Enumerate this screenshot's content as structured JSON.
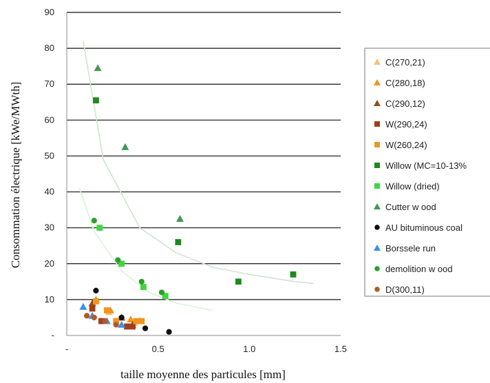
{
  "chart_data": {
    "type": "scatter",
    "xlabel": "taille moyenne des particules [mm]",
    "ylabel": "Consommation électrique [kWe/MWth]",
    "xlim": [
      0,
      1.5
    ],
    "ylim": [
      0,
      90
    ],
    "x_ticks": [
      "-",
      "0.5",
      "1.0",
      "1.5"
    ],
    "y_ticks": [
      "-",
      "10",
      "20",
      "30",
      "40",
      "50",
      "60",
      "70",
      "80",
      "90"
    ],
    "grid": "horizontal",
    "legend_position": "right",
    "series": [
      {
        "name": "C(270,21)",
        "marker": "triangle",
        "color": "#f5c27a",
        "points": [
          [
            0.23,
            6.5
          ],
          [
            0.37,
            3.5
          ]
        ]
      },
      {
        "name": "C(280,18)",
        "marker": "triangle",
        "color": "#f0951e",
        "points": [
          [
            0.16,
            10
          ],
          [
            0.24,
            7
          ],
          [
            0.35,
            4.5
          ],
          [
            0.4,
            4
          ]
        ]
      },
      {
        "name": "C(290,12)",
        "marker": "triangle",
        "color": "#9a4a1c",
        "points": [
          [
            0.14,
            9
          ],
          [
            0.3,
            5
          ],
          [
            0.36,
            3
          ]
        ]
      },
      {
        "name": "W(290,24)",
        "marker": "square",
        "color": "#a0401a",
        "points": [
          [
            0.14,
            7.5
          ],
          [
            0.19,
            4
          ],
          [
            0.33,
            2.5
          ],
          [
            0.36,
            2.5
          ]
        ]
      },
      {
        "name": "W(260,24)",
        "marker": "square",
        "color": "#f0951e",
        "points": [
          [
            0.16,
            9.5
          ],
          [
            0.22,
            7
          ],
          [
            0.27,
            4
          ],
          [
            0.38,
            4
          ],
          [
            0.41,
            4
          ]
        ]
      },
      {
        "name": "Willow  (MC=10-13%",
        "marker": "square",
        "color": "#1d8a1d",
        "points": [
          [
            0.16,
            65.5
          ],
          [
            0.61,
            26
          ],
          [
            0.94,
            15
          ],
          [
            1.24,
            17
          ]
        ]
      },
      {
        "name": "Willow  (dried)",
        "marker": "square",
        "color": "#3fd63f",
        "points": [
          [
            0.18,
            30
          ],
          [
            0.3,
            20
          ],
          [
            0.42,
            13.5
          ],
          [
            0.54,
            11
          ]
        ]
      },
      {
        "name": "Cutter w ood",
        "marker": "triangle",
        "color": "#3f9b52",
        "points": [
          [
            0.17,
            74.5
          ],
          [
            0.32,
            52.5
          ],
          [
            0.62,
            32.5
          ]
        ]
      },
      {
        "name": "AU bituminous coal",
        "marker": "circle",
        "color": "#111111",
        "points": [
          [
            0.16,
            12.5
          ],
          [
            0.3,
            5
          ],
          [
            0.43,
            2
          ],
          [
            0.56,
            1
          ]
        ]
      },
      {
        "name": "Borssele run",
        "marker": "triangle",
        "color": "#3a8ff0",
        "points": [
          [
            0.09,
            8
          ],
          [
            0.14,
            5.5
          ],
          [
            0.22,
            4
          ],
          [
            0.3,
            3
          ]
        ]
      },
      {
        "name": "demolition w ood",
        "marker": "circle",
        "color": "#2aa12a",
        "points": [
          [
            0.15,
            32
          ],
          [
            0.28,
            21
          ],
          [
            0.41,
            15
          ],
          [
            0.52,
            12
          ]
        ]
      },
      {
        "name": "D(300,11)",
        "marker": "circle",
        "color": "#b5592a",
        "points": [
          [
            0.11,
            5.5
          ],
          [
            0.15,
            5
          ],
          [
            0.21,
            4
          ],
          [
            0.27,
            3
          ]
        ]
      }
    ],
    "trendlines": [
      {
        "color": "#cfe4cf",
        "points": [
          [
            0.09,
            82
          ],
          [
            0.2,
            49
          ],
          [
            0.4,
            30
          ],
          [
            0.6,
            23
          ],
          [
            0.8,
            19
          ],
          [
            1.0,
            17
          ],
          [
            1.25,
            15
          ],
          [
            1.35,
            14.5
          ]
        ]
      },
      {
        "color": "#d8f2d8",
        "points": [
          [
            0.07,
            41
          ],
          [
            0.15,
            29
          ],
          [
            0.3,
            18
          ],
          [
            0.45,
            12
          ],
          [
            0.6,
            9
          ],
          [
            0.8,
            7
          ]
        ]
      }
    ]
  }
}
